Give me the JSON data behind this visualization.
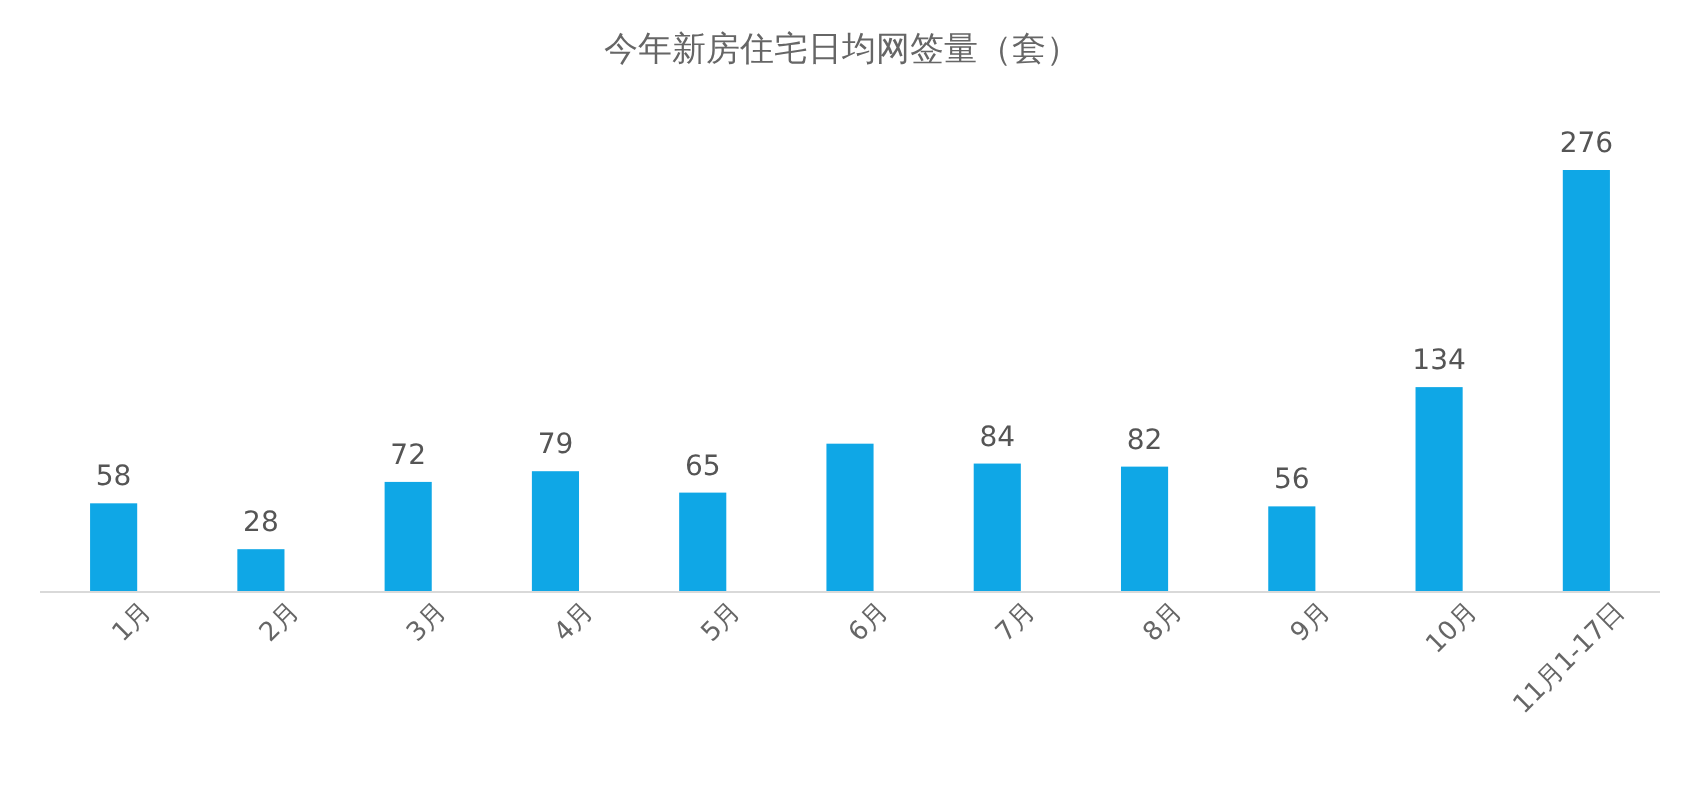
{
  "chart_data": {
    "type": "bar",
    "title": "今年新房住宅日均网签量（套）",
    "categories": [
      "1月",
      "2月",
      "3月",
      "4月",
      "5月",
      "6月",
      "7月",
      "8月",
      "9月",
      "10月",
      "11月1-17日"
    ],
    "values": [
      58,
      28,
      72,
      79,
      65,
      97,
      84,
      82,
      56,
      134,
      276
    ],
    "value_labels": [
      "58",
      "28",
      "72",
      "79",
      "65",
      null,
      "84",
      "82",
      "56",
      "134",
      "276"
    ],
    "color": "#0fa7e6"
  }
}
